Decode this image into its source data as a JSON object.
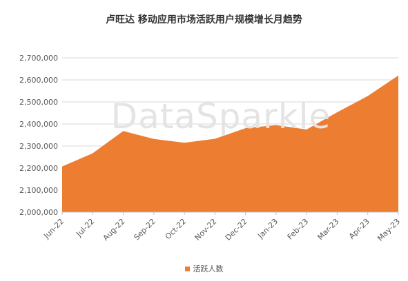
{
  "chart_data": {
    "type": "area",
    "title": "卢旺达 移动应用市场活跃用户规模增长月趋势",
    "categories": [
      "Jun-22",
      "Jul-22",
      "Aug-22",
      "Sep-22",
      "Oct-22",
      "Nov-22",
      "Dec-22",
      "Jan-23",
      "Feb-23",
      "Mar-23",
      "Apr-23",
      "May-23"
    ],
    "series": [
      {
        "name": "活跃人数",
        "color": "#ed7d31",
        "values": [
          2207000,
          2267000,
          2368000,
          2332000,
          2315000,
          2333000,
          2381000,
          2395000,
          2375000,
          2453000,
          2527000,
          2620000
        ]
      }
    ],
    "ylim": [
      2000000,
      2700000
    ],
    "yticks": [
      2000000,
      2100000,
      2200000,
      2300000,
      2400000,
      2500000,
      2600000,
      2700000
    ],
    "ytick_labels": [
      "2,000,000",
      "2,100,000",
      "2,200,000",
      "2,300,000",
      "2,400,000",
      "2,500,000",
      "2,600,000",
      "2,700,000"
    ],
    "grid": true,
    "legend_position": "bottom",
    "watermark": "DataSparkle"
  }
}
